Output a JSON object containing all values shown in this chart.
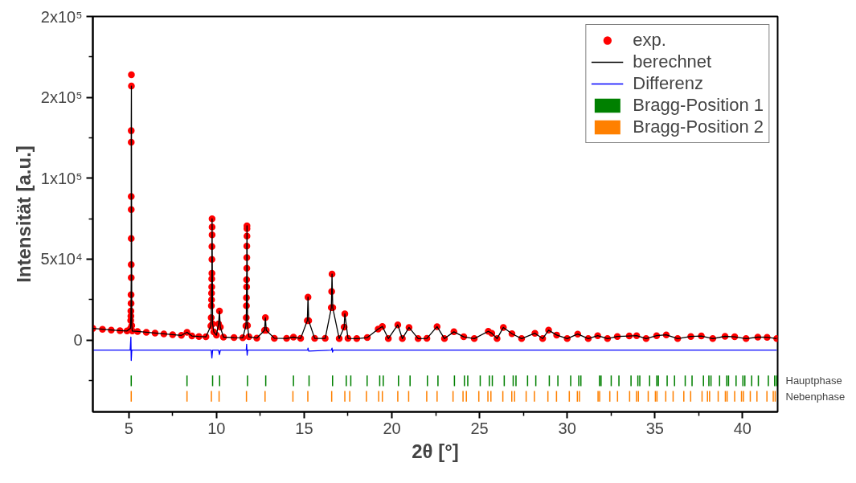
{
  "chart_data": {
    "type": "scatter",
    "xlabel": "2θ [°]",
    "ylabel": "Intensität [a.u.]",
    "xlim": [
      2.95,
      42.0
    ],
    "ylim": [
      -44400,
      200000
    ],
    "xticks": [
      5,
      {
        "value": 7.5,
        "label": null
      },
      10,
      {
        "value": 12.5,
        "label": null
      },
      15,
      {
        "value": 17.5,
        "label": null
      },
      20,
      {
        "value": 22.5,
        "label": null
      },
      25,
      {
        "value": 27.5,
        "label": null
      },
      30,
      {
        "value": 32.5,
        "label": null
      },
      35,
      {
        "value": 37.5,
        "label": null
      },
      40
    ],
    "yticks": [
      {
        "value": -25000,
        "label": null
      },
      0,
      {
        "value": 25000,
        "label": null
      },
      {
        "value": 50000,
        "label": "5x10⁴"
      },
      {
        "value": 75000,
        "label": null
      },
      {
        "value": 100000,
        "label": "1x10⁵"
      },
      {
        "value": 125000,
        "label": null
      },
      {
        "value": 150000,
        "label": "2x10⁵"
      },
      {
        "value": 175000,
        "label": null
      },
      {
        "value": 200000,
        "label": "2x10⁵"
      }
    ],
    "grid": false,
    "legend": "top right",
    "x": [
      2.95,
      3.5,
      4.0,
      4.5,
      4.9,
      5.1,
      5.11,
      5.12,
      5.12,
      5.13,
      5.13,
      5.14,
      5.14,
      5.14,
      5.14,
      5.14,
      5.14,
      5.14,
      5.15,
      5.15,
      5.17,
      5.2,
      5.5,
      6.0,
      6.5,
      7.0,
      7.5,
      8.0,
      8.32,
      8.6,
      9.0,
      9.4,
      9.68,
      9.7,
      9.71,
      9.72,
      9.72,
      9.73,
      9.73,
      9.74,
      9.74,
      9.74,
      9.75,
      9.75,
      9.75,
      9.78,
      9.85,
      10.0,
      10.12,
      10.17,
      10.22,
      10.4,
      11.0,
      11.5,
      11.68,
      11.7,
      11.71,
      11.71,
      11.72,
      11.72,
      11.73,
      11.73,
      11.73,
      11.74,
      11.74,
      11.74,
      11.77,
      11.85,
      12.3,
      12.74,
      12.79,
      12.84,
      13.3,
      14.0,
      14.39,
      14.8,
      15.18,
      15.22,
      15.26,
      15.6,
      16.2,
      16.55,
      16.57,
      16.59,
      16.63,
      17.0,
      17.28,
      17.32,
      17.5,
      18.0,
      18.6,
      19.22,
      19.46,
      19.8,
      20.34,
      20.6,
      20.98,
      21.5,
      22.0,
      22.58,
      23.0,
      23.54,
      24.1,
      24.7,
      25.5,
      25.7,
      26.0,
      26.36,
      26.85,
      27.4,
      28.16,
      28.6,
      28.94,
      29.4,
      30.0,
      30.6,
      31.2,
      31.74,
      32.3,
      32.86,
      33.54,
      33.96,
      34.5,
      35.1,
      35.65,
      36.3,
      37.05,
      37.65,
      38.3,
      39.0,
      39.55,
      40.2,
      40.87,
      41.4,
      41.95
    ],
    "series": [
      {
        "name": "exp.",
        "marker": "circle",
        "color": "#ff0000",
        "values": [
          7200,
          6700,
          6200,
          5800,
          5600,
          7300,
          12100,
          14800,
          17900,
          22700,
          28000,
          38600,
          46600,
          62800,
          80700,
          88700,
          122300,
          129400,
          157000,
          164000,
          9000,
          5600,
          5300,
          4800,
          4300,
          3800,
          3300,
          2900,
          4800,
          2500,
          2200,
          2000,
          8800,
          13800,
          21200,
          24900,
          29000,
          32800,
          37800,
          41300,
          49900,
          57800,
          65000,
          69900,
          75000,
          10000,
          5000,
          3000,
          10000,
          17900,
          8000,
          1800,
          1500,
          1400,
          8800,
          13800,
          21200,
          26200,
          32800,
          37300,
          44400,
          51000,
          58000,
          64300,
          68900,
          70600,
          9000,
          2000,
          1200,
          6000,
          13800,
          6000,
          1100,
          1000,
          1800,
          1000,
          12000,
          26500,
          12000,
          1000,
          1000,
          20000,
          30000,
          40800,
          20000,
          900,
          8000,
          16200,
          1000,
          900,
          1500,
          6800,
          8400,
          900,
          9400,
          900,
          7800,
          900,
          1000,
          8300,
          900,
          5100,
          2000,
          900,
          5400,
          4200,
          900,
          7800,
          3900,
          900,
          4200,
          900,
          6100,
          3100,
          900,
          3700,
          900,
          2700,
          900,
          2200,
          2500,
          2700,
          900,
          2700,
          3200,
          900,
          2200,
          2500,
          900,
          2300,
          2000,
          900,
          1800,
          1700,
          900
        ]
      },
      {
        "name": "berechnet",
        "type": "line",
        "color": "#000000",
        "values": [
          7200,
          6700,
          6200,
          5800,
          5600,
          7300,
          12100,
          14800,
          17900,
          22700,
          28000,
          38600,
          46600,
          62800,
          80700,
          88700,
          122300,
          129400,
          157000,
          157000,
          9000,
          5600,
          5300,
          4800,
          4300,
          3800,
          3300,
          2900,
          4800,
          2500,
          2200,
          2000,
          8800,
          13800,
          21200,
          24900,
          29000,
          32800,
          37800,
          41300,
          49900,
          57800,
          65000,
          69900,
          75000,
          10000,
          5000,
          3000,
          10000,
          17900,
          8000,
          1800,
          1500,
          1400,
          8800,
          13800,
          21200,
          26200,
          32800,
          37300,
          44400,
          51000,
          58000,
          64300,
          68900,
          70600,
          9000,
          2000,
          1200,
          6000,
          13800,
          6000,
          1100,
          1000,
          1800,
          1000,
          12000,
          26500,
          12000,
          1000,
          1000,
          20000,
          30000,
          40800,
          20000,
          900,
          8000,
          16200,
          1000,
          900,
          1500,
          6800,
          8400,
          900,
          9400,
          900,
          7800,
          900,
          1000,
          8300,
          900,
          5100,
          2000,
          900,
          5400,
          4200,
          900,
          7800,
          3900,
          900,
          4200,
          900,
          6100,
          3100,
          900,
          3700,
          900,
          2700,
          900,
          2200,
          2500,
          2700,
          900,
          2700,
          3200,
          900,
          2200,
          2500,
          900,
          2300,
          2000,
          900,
          1800,
          1700,
          900
        ]
      },
      {
        "name": "Differenz",
        "type": "line",
        "color": "#0000ff",
        "x": [
          2.95,
          5.08,
          5.12,
          5.14,
          5.17,
          9.7,
          9.74,
          9.78,
          10.12,
          10.17,
          10.22,
          11.7,
          11.72,
          11.75,
          11.78,
          15.2,
          15.22,
          15.26,
          16.55,
          16.59,
          16.62,
          16.65,
          41.95
        ],
        "values": [
          -6200,
          -6200,
          1800,
          -12600,
          -6200,
          -6200,
          -11100,
          -6200,
          -6200,
          -9000,
          -6200,
          -6200,
          -2600,
          -9400,
          -6200,
          -6200,
          -5000,
          -6800,
          -6200,
          -5000,
          -7500,
          -6200,
          -6200
        ]
      },
      {
        "name": "Bragg-Position 1",
        "type": "bar",
        "color": "#008000",
        "x": [
          5.14,
          8.32,
          9.78,
          10.18,
          11.77,
          12.81,
          14.39,
          15.28,
          16.62,
          17.4,
          17.66,
          18.59,
          19.31,
          19.51,
          20.38,
          21.04,
          22.03,
          22.63,
          23.57,
          24.14,
          24.33,
          25.04,
          25.56,
          25.73,
          26.41,
          26.92,
          27.08,
          27.74,
          28.21,
          28.98,
          29.47,
          30.2,
          30.66,
          30.78,
          31.84,
          31.93,
          32.51,
          32.95,
          33.64,
          34.03,
          34.14,
          34.7,
          35.11,
          35.2,
          35.7,
          36.12,
          36.73,
          37.12,
          37.77,
          38.08,
          38.2,
          38.69,
          39.1,
          39.2,
          39.63,
          40.02,
          40.13,
          40.52,
          40.9,
          41.47,
          41.83,
          41.94
        ],
        "base": [
          -28500,
          -28500,
          -28500,
          -28500,
          -28500,
          -28500,
          -28500,
          -28500,
          -28500,
          -28500,
          -28500,
          -28500,
          -28500,
          -28500,
          -28500,
          -28500,
          -28500,
          -28500,
          -28500,
          -28500,
          -28500,
          -28500,
          -28500,
          -28500,
          -28500,
          -28500,
          -28500,
          -28500,
          -28500,
          -28500,
          -28500,
          -28500,
          -28500,
          -28500,
          -28500,
          -28500,
          -28500,
          -28500,
          -28500,
          -28500,
          -28500,
          -28500,
          -28500,
          -28500,
          -28500,
          -28500,
          -28500,
          -28500,
          -28500,
          -28500,
          -28500,
          -28500,
          -28500,
          -28500,
          -28500,
          -28500,
          -28500,
          -28500,
          -28500,
          -28500,
          -28500,
          -28500
        ],
        "values": [
          6600,
          6600,
          6600,
          6600,
          6600,
          6600,
          6600,
          6600,
          6600,
          6600,
          6600,
          6600,
          6600,
          6600,
          6600,
          6600,
          6600,
          6600,
          6600,
          6600,
          6600,
          6600,
          6600,
          6600,
          6600,
          6600,
          6600,
          6600,
          6600,
          6600,
          6600,
          6600,
          6600,
          6600,
          6600,
          6600,
          6600,
          6600,
          6600,
          6600,
          6600,
          6600,
          6600,
          6600,
          6600,
          6600,
          6600,
          6600,
          6600,
          6600,
          6600,
          6600,
          6600,
          6600,
          6600,
          6600,
          6600,
          6600,
          6600,
          6600,
          6600,
          6600
        ]
      },
      {
        "name": "Bragg-Position 2",
        "type": "bar",
        "color": "#ff8000",
        "x": [
          5.14,
          8.32,
          9.71,
          10.15,
          11.71,
          12.77,
          14.36,
          15.21,
          16.57,
          17.32,
          17.6,
          18.55,
          19.25,
          19.46,
          20.34,
          20.96,
          21.99,
          22.58,
          23.49,
          24.06,
          24.25,
          24.96,
          25.48,
          25.65,
          26.33,
          26.84,
          27.0,
          27.66,
          28.13,
          28.9,
          29.39,
          30.12,
          30.58,
          30.7,
          31.76,
          31.85,
          32.43,
          32.87,
          33.56,
          33.95,
          34.06,
          34.62,
          35.03,
          35.12,
          35.62,
          36.04,
          36.65,
          37.04,
          37.69,
          38.0,
          38.12,
          38.61,
          39.02,
          39.12,
          39.55,
          39.94,
          40.05,
          40.44,
          40.82,
          41.39,
          41.75,
          41.86
        ],
        "base": [
          -38100,
          -38100,
          -38100,
          -38100,
          -38100,
          -38100,
          -38100,
          -38100,
          -38100,
          -38100,
          -38100,
          -38100,
          -38100,
          -38100,
          -38100,
          -38100,
          -38100,
          -38100,
          -38100,
          -38100,
          -38100,
          -38100,
          -38100,
          -38100,
          -38100,
          -38100,
          -38100,
          -38100,
          -38100,
          -38100,
          -38100,
          -38100,
          -38100,
          -38100,
          -38100,
          -38100,
          -38100,
          -38100,
          -38100,
          -38100,
          -38100,
          -38100,
          -38100,
          -38100,
          -38100,
          -38100,
          -38100,
          -38100,
          -38100,
          -38100,
          -38100,
          -38100,
          -38100,
          -38100,
          -38100,
          -38100,
          -38100,
          -38100,
          -38100,
          -38100,
          -38100,
          -38100
        ],
        "values": [
          6600,
          6600,
          6600,
          6600,
          6600,
          6600,
          6600,
          6600,
          6600,
          6600,
          6600,
          6600,
          6600,
          6600,
          6600,
          6600,
          6600,
          6600,
          6600,
          6600,
          6600,
          6600,
          6600,
          6600,
          6600,
          6600,
          6600,
          6600,
          6600,
          6600,
          6600,
          6600,
          6600,
          6600,
          6600,
          6600,
          6600,
          6600,
          6600,
          6600,
          6600,
          6600,
          6600,
          6600,
          6600,
          6600,
          6600,
          6600,
          6600,
          6600,
          6600,
          6600,
          6600,
          6600,
          6600,
          6600,
          6600,
          6600,
          6600,
          6600,
          6600,
          6600
        ]
      }
    ],
    "annotations": [
      {
        "text": "Hauptphase",
        "x": 42.0,
        "y": -25200
      },
      {
        "text": "Nebenphase",
        "x": 42.0,
        "y": -34800
      }
    ]
  }
}
